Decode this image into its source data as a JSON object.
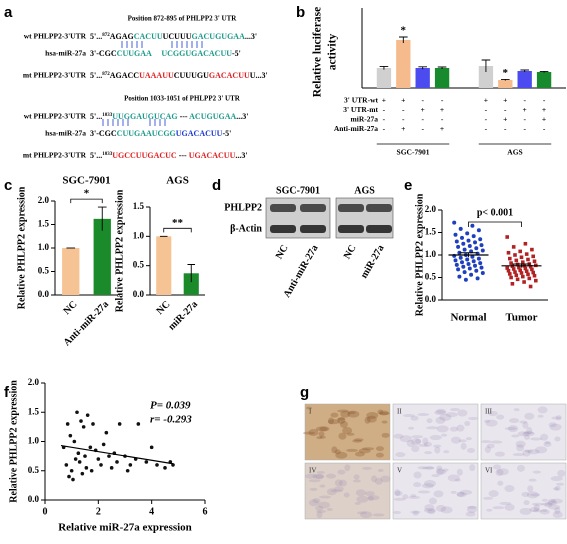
{
  "panel_labels": [
    "a",
    "b",
    "c",
    "d",
    "e",
    "f",
    "g"
  ],
  "sequences": {
    "blocks": [
      {
        "title": "Position 872-895 of PHLPP2 3' UTR",
        "rows": [
          {
            "label": "wt PHLPP2-3'UTR",
            "segments": [
              {
                "text": "5'...",
                "color": "#000000"
              },
              {
                "text": "872",
                "color": "#000000",
                "sup": true
              },
              {
                "text": "AGAG",
                "color": "#000000"
              },
              {
                "text": "CACUU",
                "color": "#1a9a8a"
              },
              {
                "text": "UCUUU",
                "color": "#000000"
              },
              {
                "text": "GACUGUGAA",
                "color": "#1a9a8a"
              },
              {
                "text": "...3'",
                "color": "#000000"
              }
            ]
          },
          {
            "label": "hsa-miR-27a",
            "segments": [
              {
                "text": "3'-CGC",
                "color": "#000000"
              },
              {
                "text": "CUUGAA",
                "color": "#1a9a8a"
              },
              {
                "text": "     ",
                "color": "#000000"
              },
              {
                "text": "UCGGUGACACUU",
                "color": "#1a9a8a"
              },
              {
                "text": "-5'",
                "color": "#000000"
              }
            ]
          },
          {
            "label": "mt PHLPP2-3'UTR",
            "segments": [
              {
                "text": "5'...",
                "color": "#000000"
              },
              {
                "text": "872",
                "color": "#000000",
                "sup": true
              },
              {
                "text": "AGACC",
                "color": "#000000"
              },
              {
                "text": "UAAAUU",
                "color": "#e02020"
              },
              {
                "text": "CUUUGU",
                "color": "#000000"
              },
              {
                "text": "GACACUU",
                "color": "#e02020"
              },
              {
                "text": "U...3'",
                "color": "#000000"
              }
            ]
          }
        ]
      },
      {
        "title": "Position 1033-1051 of PHLPP2 3' UTR",
        "rows": [
          {
            "label": "wt PHLPP2-3'UTR",
            "segments": [
              {
                "text": "5'...",
                "color": "#000000"
              },
              {
                "text": "1033",
                "color": "#000000",
                "sup": true
              },
              {
                "text": "UUGGAUGUCAG",
                "color": "#1a9a8a"
              },
              {
                "text": " --- ",
                "color": "#000000"
              },
              {
                "text": "ACUGUGAA",
                "color": "#1a9a8a"
              },
              {
                "text": "...3'",
                "color": "#000000"
              }
            ]
          },
          {
            "label": "hsa-miR-27a",
            "segments": [
              {
                "text": "3'-CGC",
                "color": "#000000"
              },
              {
                "text": "CUUGAAUCGG",
                "color": "#1a9a8a"
              },
              {
                "text": "UGACACUU",
                "color": "#1a3ad0"
              },
              {
                "text": "-5'",
                "color": "#000000"
              }
            ]
          },
          {
            "label": "mt PHLPP2-3'UTR",
            "segments": [
              {
                "text": "5'...",
                "color": "#000000"
              },
              {
                "text": "1033",
                "color": "#000000",
                "sup": true
              },
              {
                "text": "UGCCUUGACUC",
                "color": "#e02020"
              },
              {
                "text": " --- ",
                "color": "#000000"
              },
              {
                "text": "UGACACUU",
                "color": "#e02020"
              },
              {
                "text": "...3'",
                "color": "#000000"
              }
            ]
          }
        ]
      }
    ]
  },
  "blot": {
    "rows": [
      "PHLPP2",
      "β-Actin"
    ],
    "groups": [
      "SGC-7901",
      "AGS"
    ],
    "lanes": [
      "NC",
      "Anti-miR-27a",
      "NC",
      "miR-27a"
    ]
  },
  "ihc": {
    "images": [
      "I",
      "II",
      "III",
      "IV",
      "V",
      "VI"
    ]
  },
  "chart_data": [
    {
      "type": "bar",
      "ylabel": [
        "Relative luciferase",
        "activity"
      ],
      "ylim": [
        0,
        4
      ],
      "categories": [
        "SGC-7901",
        "AGS"
      ],
      "series": [
        {
          "color": "#d0d0d0",
          "values": [
            1.0,
            1.1
          ],
          "errors": [
            0.08,
            0.3
          ]
        },
        {
          "color": "#f6bb8c",
          "values": [
            2.4,
            0.4
          ],
          "errors": [
            0.15,
            0.03
          ],
          "significance": [
            "*",
            "*"
          ]
        },
        {
          "color": "#4b4bf0",
          "values": [
            1.0,
            0.85
          ],
          "errors": [
            0.06,
            0.05
          ]
        },
        {
          "color": "#168a2c",
          "values": [
            1.0,
            0.8
          ],
          "errors": [
            0.05,
            0.03
          ]
        }
      ],
      "conditions": {
        "labels": [
          "3' UTR-wt",
          "3' UTR-mt",
          "miR-27a",
          "Anti-miR-27a"
        ],
        "rows": [
          [
            "+",
            "+",
            "-",
            "-",
            "+",
            "+",
            "-",
            "-"
          ],
          [
            "-",
            "-",
            "+",
            "+",
            "-",
            "-",
            "+",
            "+"
          ],
          [
            "-",
            "-",
            "-",
            "-",
            "-",
            "+",
            "-",
            "+"
          ],
          [
            "-",
            "+",
            "-",
            "+",
            "-",
            "-",
            "-",
            "-"
          ]
        ]
      }
    },
    {
      "type": "bar",
      "title": "SGC-7901",
      "ylabel": "Relative PHLPP2 expression",
      "categories": [
        "NC",
        "Anti-miR-27a"
      ],
      "values": [
        1.0,
        1.62
      ],
      "errors": [
        0,
        0.25
      ],
      "colors": [
        "#f6c394",
        "#1a8a2a"
      ],
      "significance": "*",
      "ylim": [
        0,
        2
      ],
      "yticks": [
        {
          "value": 0,
          "label": "0.0"
        },
        0.5,
        {
          "value": 1,
          "label": "1.0"
        },
        1.5,
        {
          "value": 2,
          "label": "2.0"
        }
      ]
    },
    {
      "type": "bar",
      "title": "AGS",
      "ylabel": "Relative PHLPP2 expression",
      "categories": [
        "NC",
        "miR-27a"
      ],
      "values": [
        1.0,
        0.37
      ],
      "errors": [
        0,
        0.15
      ],
      "colors": [
        "#f6c394",
        "#1a8a2a"
      ],
      "significance": "**",
      "ylim": [
        0,
        1.5
      ],
      "yticks": [
        {
          "value": 0,
          "label": "0.0"
        },
        0.5,
        {
          "value": 1,
          "label": "1.0"
        },
        1.5
      ]
    },
    {
      "type": "strip",
      "ylabel": "Relative PHLPP2 expression",
      "categories": [
        "Normal",
        "Tumor"
      ],
      "colors": [
        "#1f3fbf",
        "#b22222"
      ],
      "values": [
        [
          1.72,
          1.65,
          1.58,
          1.55,
          1.48,
          1.45,
          1.42,
          1.38,
          1.35,
          1.32,
          1.3,
          1.28,
          1.25,
          1.22,
          1.2,
          1.18,
          1.15,
          1.12,
          1.1,
          1.08,
          1.05,
          1.03,
          1.0,
          0.98,
          0.96,
          0.94,
          0.92,
          0.9,
          0.88,
          0.86,
          0.84,
          0.82,
          0.8,
          0.78,
          0.76,
          0.74,
          0.72,
          0.7,
          0.68,
          0.65,
          0.62,
          0.6,
          0.56,
          0.52,
          0.48,
          0.45
        ],
        [
          1.4,
          1.25,
          1.18,
          1.12,
          1.08,
          1.05,
          1.02,
          1.0,
          0.97,
          0.95,
          0.92,
          0.9,
          0.88,
          0.86,
          0.84,
          0.82,
          0.8,
          0.79,
          0.77,
          0.76,
          0.75,
          0.74,
          0.72,
          0.71,
          0.7,
          0.69,
          0.68,
          0.66,
          0.65,
          0.64,
          0.62,
          0.61,
          0.6,
          0.58,
          0.57,
          0.55,
          0.54,
          0.52,
          0.5,
          0.48,
          0.46,
          0.43,
          0.4,
          0.36,
          0.3
        ]
      ],
      "mean": [
        1.0,
        0.76
      ],
      "errors": [
        0.05,
        0.04
      ],
      "annotation": "p< 0.001",
      "ylim": [
        0,
        2
      ],
      "yticks": [
        {
          "value": 0,
          "label": "0.0"
        },
        0.5,
        {
          "value": 1,
          "label": "1.0"
        },
        1.5,
        {
          "value": 2,
          "label": "2.0"
        }
      ]
    },
    {
      "type": "scatter",
      "xlabel": "Relative miR-27a expression",
      "ylabel": "Relative PHLPP2 expression",
      "x": [
        0.7,
        0.8,
        0.85,
        0.9,
        0.95,
        1.0,
        1.05,
        1.1,
        1.15,
        1.2,
        1.25,
        1.3,
        1.35,
        1.4,
        1.45,
        1.5,
        1.55,
        1.6,
        1.7,
        1.75,
        1.8,
        1.9,
        2.0,
        2.1,
        2.2,
        2.3,
        2.4,
        2.5,
        2.6,
        2.7,
        2.8,
        3.0,
        3.1,
        3.2,
        3.4,
        3.5,
        3.8,
        4.0,
        4.2,
        4.5,
        4.7,
        4.8
      ],
      "values": [
        0.9,
        0.6,
        1.3,
        0.4,
        1.1,
        0.5,
        0.35,
        1.0,
        0.7,
        1.5,
        0.8,
        0.65,
        1.35,
        0.45,
        1.25,
        0.75,
        0.55,
        1.45,
        0.9,
        0.5,
        1.3,
        0.85,
        0.7,
        0.6,
        0.95,
        1.15,
        0.75,
        0.55,
        0.8,
        0.65,
        1.3,
        0.75,
        0.5,
        0.6,
        0.7,
        1.3,
        0.65,
        0.9,
        0.6,
        0.55,
        0.65,
        0.6
      ],
      "color": "#111111",
      "fit": {
        "x": [
          0.6,
          4.8
        ],
        "y": [
          0.93,
          0.62
        ]
      },
      "annotations": [
        "P= 0.039",
        "r= -0.293"
      ],
      "xlim": [
        0,
        6
      ],
      "xticks": [
        0,
        2,
        4,
        6
      ],
      "ylim": [
        0,
        2
      ],
      "yticks": [
        {
          "value": 0,
          "label": "0.0"
        },
        0.5,
        {
          "value": 1,
          "label": "1.0"
        },
        1.5,
        {
          "value": 2,
          "label": "2.0"
        }
      ]
    }
  ]
}
